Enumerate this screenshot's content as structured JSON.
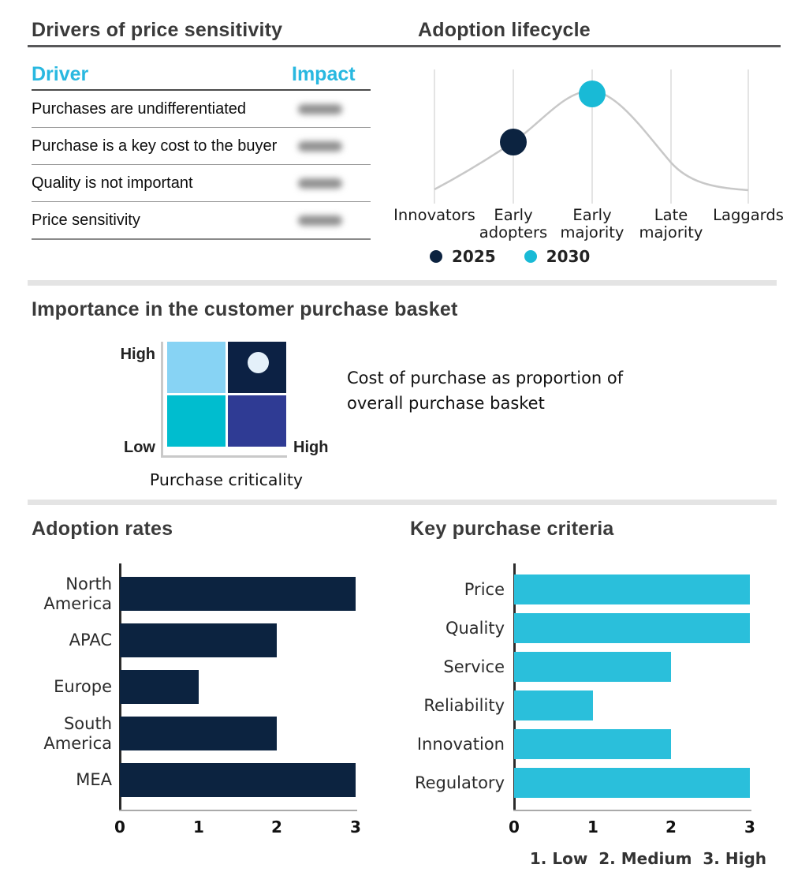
{
  "colors": {
    "navy": "#0c2340",
    "cyan_dot": "#19bad6",
    "cyan_bar": "#2abfdb",
    "header_cyan": "#29b8e0",
    "matrix_light_blue": "#87d3f4",
    "matrix_navy": "#0c2144",
    "matrix_teal": "#00bdcf",
    "matrix_indigo": "#2f3b94",
    "matrix_marker": "#e4f0fa",
    "curve_gray": "#c8c8c8",
    "grid_gray": "#dcdcdc"
  },
  "sections": {
    "price_sensitivity": {
      "title": "Drivers of price sensitivity",
      "table": {
        "headers": [
          "Driver",
          "Impact"
        ],
        "rows": [
          {
            "driver": "Purchases are undifferentiated",
            "impact_blurred": true
          },
          {
            "driver": "Purchase is a key cost to the buyer",
            "impact_blurred": true
          },
          {
            "driver": "Quality is not important",
            "impact_blurred": true
          },
          {
            "driver": "Price sensitivity",
            "impact_blurred": true
          }
        ]
      }
    },
    "adoption_lifecycle": {
      "title": "Adoption lifecycle"
    },
    "importance_matrix": {
      "title": "Importance in the customer purchase basket",
      "y_high": "High",
      "y_low": "Low",
      "x_high": "High",
      "xlabel": "Purchase criticality",
      "annotation": "Cost of purchase as proportion of overall purchase basket"
    },
    "adoption_rates": {
      "title": "Adoption rates"
    },
    "key_purchase_criteria": {
      "title": "Key purchase criteria"
    }
  },
  "chart_data": [
    {
      "type": "line",
      "title": "Adoption lifecycle",
      "x": [
        "Innovators",
        "Early adopters",
        "Early majority",
        "Late majority",
        "Laggards"
      ],
      "curve": "gray bell-shaped adoption curve peaking at Early majority",
      "grid": "vertical gridlines at each stage",
      "series": [
        {
          "name": "2025",
          "category": "Early adopters",
          "color": "#0c2340"
        },
        {
          "name": "2030",
          "category": "Early majority",
          "color": "#19bad6"
        }
      ],
      "legend_position": "bottom-left"
    },
    {
      "type": "heatmap",
      "title": "Importance in the customer purchase basket",
      "xlabel": "Purchase criticality",
      "x_range": [
        "Low",
        "High"
      ],
      "y_range": [
        "Low",
        "High"
      ],
      "quadrants": {
        "top_left": "#87d3f4",
        "top_right": "#0c2144",
        "bottom_left": "#00bdcf",
        "bottom_right": "#2f3b94"
      },
      "marker": {
        "quadrant": "top_right",
        "color": "#e4f0fa"
      },
      "annotation": "Cost of purchase as proportion of overall purchase basket"
    },
    {
      "type": "bar",
      "orientation": "horizontal",
      "title": "Adoption rates",
      "categories": [
        "North America",
        "APAC",
        "Europe",
        "South America",
        "MEA"
      ],
      "values": [
        3,
        2,
        1,
        2,
        3
      ],
      "xlim": [
        0,
        3
      ],
      "xticks": [
        "0",
        "1",
        "2",
        "3"
      ],
      "bar_color": "#0c2340"
    },
    {
      "type": "bar",
      "orientation": "horizontal",
      "title": "Key purchase criteria",
      "categories": [
        "Price",
        "Quality",
        "Service",
        "Reliability",
        "Innovation",
        "Regulatory"
      ],
      "values": [
        3,
        3,
        2,
        1,
        2,
        3
      ],
      "xlim": [
        0,
        3
      ],
      "xticks": [
        "0",
        "1",
        "2",
        "3"
      ],
      "bar_color": "#2abfdb",
      "note": "1. Low  2. Medium  3. High"
    }
  ]
}
